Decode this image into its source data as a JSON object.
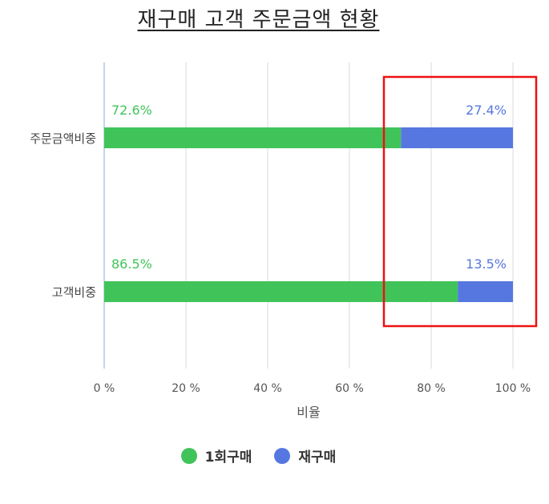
{
  "colors": {
    "series1": "#40c459",
    "series2": "#5677df",
    "grid": "#e3e6ec",
    "axis_line": "#c6d4ec",
    "highlight_box": "#ee1111"
  },
  "chart_data": {
    "type": "bar",
    "orientation": "horizontal",
    "stacked": "percent",
    "title": "재구매 고객 주문금액 현황",
    "xlabel": "비율",
    "ylabel": "",
    "categories": [
      "주문금액비중",
      "고객비중"
    ],
    "xlim": [
      0,
      100
    ],
    "x_ticks": [
      "0 %",
      "20 %",
      "40 %",
      "60 %",
      "80 %",
      "100 %"
    ],
    "series": [
      {
        "name": "1회구매",
        "values": [
          72.6,
          86.5
        ],
        "labels": [
          "72.6%",
          "86.5%"
        ]
      },
      {
        "name": "재구매",
        "values": [
          27.4,
          13.5
        ],
        "labels": [
          "27.4%",
          "13.5%"
        ]
      }
    ],
    "grid": true,
    "legend_position": "bottom",
    "annotation": "red rectangle highlighting the 재구매 share (approx. 68%–100%) on both bars"
  }
}
